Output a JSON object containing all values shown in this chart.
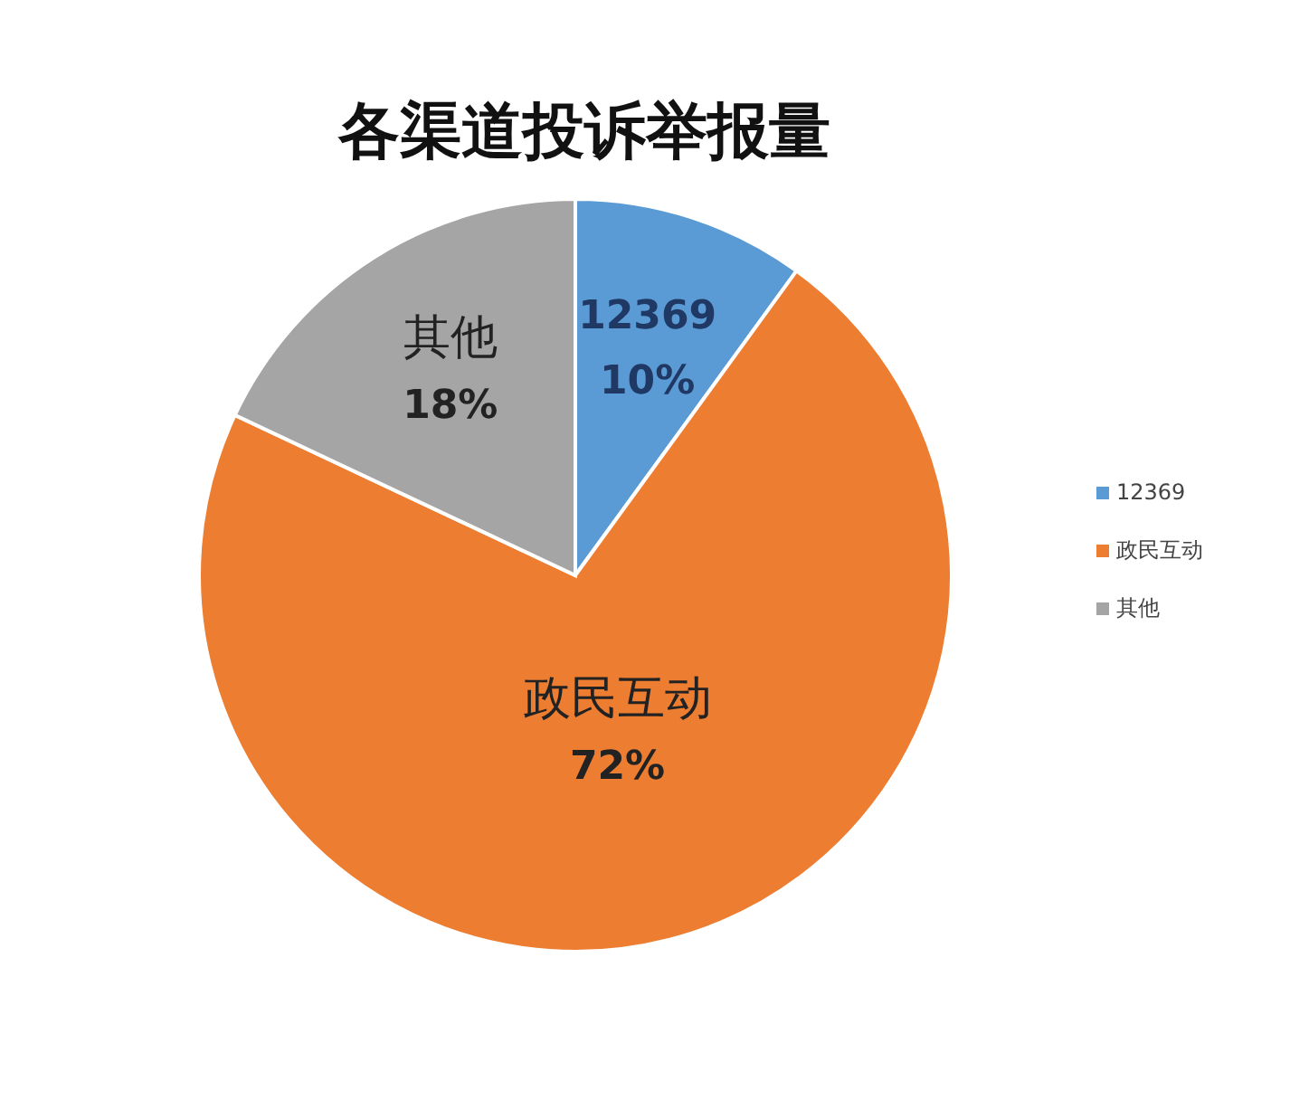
{
  "chart_data": {
    "type": "pie",
    "title": "各渠道投诉举报量",
    "categories": [
      "12369",
      "政民互动",
      "其他"
    ],
    "values": [
      10,
      72,
      18
    ],
    "value_labels": [
      "10%",
      "72%",
      "18%"
    ],
    "colors": [
      "#5b9bd5",
      "#ed7d31",
      "#a5a5a5"
    ],
    "legend": "right"
  }
}
